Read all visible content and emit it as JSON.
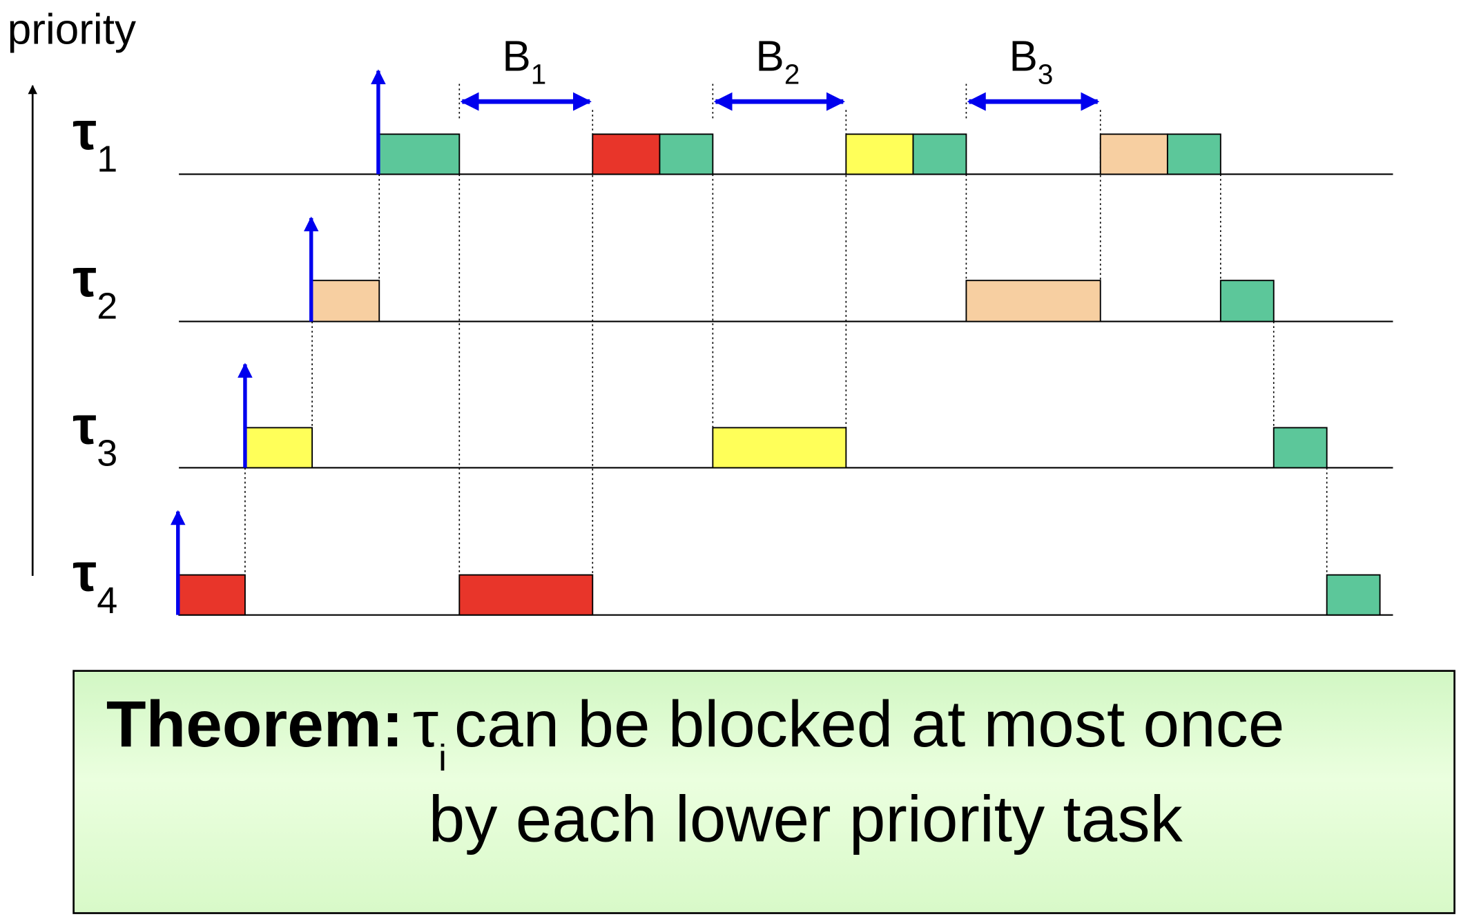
{
  "axis": {
    "label": "priority"
  },
  "tasks": [
    {
      "symbol": "τ",
      "index": "1"
    },
    {
      "symbol": "τ",
      "index": "2"
    },
    {
      "symbol": "τ",
      "index": "3"
    },
    {
      "symbol": "τ",
      "index": "4"
    }
  ],
  "blocking_intervals": [
    {
      "letter": "B",
      "index": "1"
    },
    {
      "letter": "B",
      "index": "2"
    },
    {
      "letter": "B",
      "index": "3"
    }
  ],
  "colors": {
    "task4": "#e8352a",
    "task3": "#ffff59",
    "task2": "#f7cfa1",
    "task1": "#5cc79a",
    "arrival_arrow": "#0000ee",
    "blocking_arrow": "#0000ee"
  },
  "theorem": {
    "label": "Theorem:",
    "symbol": "τ",
    "subscript": "i",
    "line1": "can be blocked at most once",
    "line2": "by each lower priority task"
  }
}
